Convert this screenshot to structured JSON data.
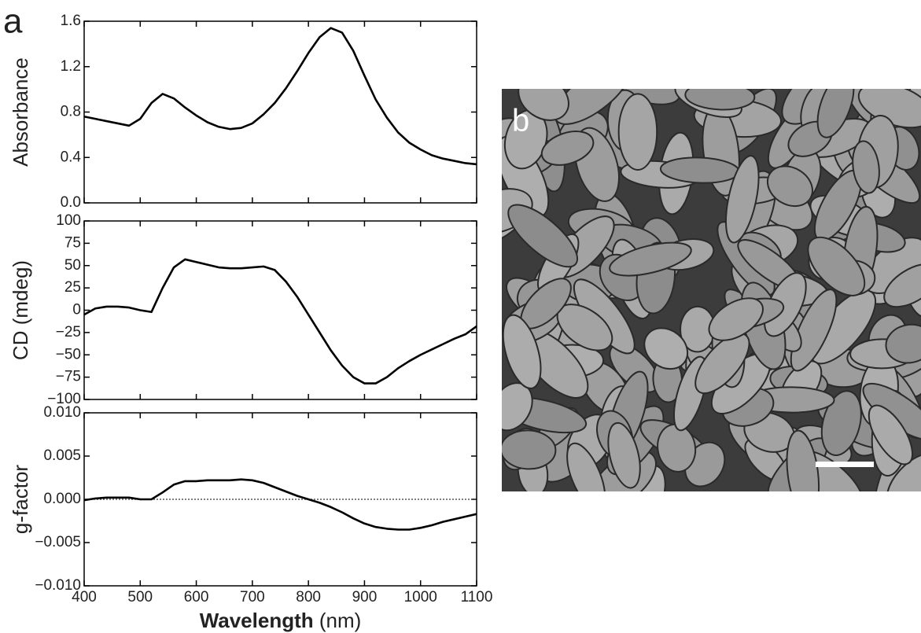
{
  "panel_labels": [
    "a",
    "b"
  ],
  "chart_data": [
    {
      "type": "line",
      "ylabel": "Absorbance",
      "color": "#000000",
      "x": [
        400,
        420,
        440,
        460,
        480,
        500,
        520,
        540,
        560,
        580,
        600,
        620,
        640,
        660,
        680,
        700,
        720,
        740,
        760,
        780,
        800,
        820,
        840,
        860,
        880,
        900,
        920,
        940,
        960,
        980,
        1000,
        1020,
        1040,
        1060,
        1080,
        1100
      ],
      "values": [
        0.76,
        0.74,
        0.72,
        0.7,
        0.68,
        0.74,
        0.88,
        0.96,
        0.92,
        0.84,
        0.77,
        0.71,
        0.67,
        0.65,
        0.66,
        0.7,
        0.78,
        0.88,
        1.01,
        1.16,
        1.32,
        1.46,
        1.54,
        1.5,
        1.34,
        1.12,
        0.91,
        0.75,
        0.62,
        0.53,
        0.47,
        0.42,
        0.39,
        0.37,
        0.35,
        0.34
      ],
      "xlim": [
        400,
        1100
      ],
      "xticks": [
        400,
        500,
        600,
        700,
        800,
        900,
        1000,
        1100
      ],
      "ylim": [
        0,
        1.6
      ],
      "yticks": [
        {
          "value": 0,
          "label": "0.0"
        },
        0.4,
        0.8,
        1.2,
        {
          "value": 1.6,
          "label": "1.6"
        }
      ]
    },
    {
      "type": "line",
      "ylabel": "CD (mdeg)",
      "color": "#000000",
      "x": [
        400,
        420,
        440,
        460,
        480,
        500,
        520,
        540,
        560,
        580,
        600,
        620,
        640,
        660,
        680,
        700,
        720,
        740,
        760,
        780,
        800,
        820,
        840,
        860,
        880,
        900,
        920,
        940,
        960,
        980,
        1000,
        1020,
        1040,
        1060,
        1080,
        1100
      ],
      "values": [
        -5,
        2,
        4,
        4,
        3,
        0,
        -2,
        25,
        48,
        57,
        54,
        51,
        48,
        47,
        47,
        48,
        49,
        45,
        32,
        15,
        -5,
        -25,
        -45,
        -62,
        -75,
        -82,
        -82,
        -75,
        -65,
        -57,
        -50,
        -44,
        -38,
        -32,
        -27,
        -18
      ],
      "xlim": [
        400,
        1100
      ],
      "xticks": [
        400,
        500,
        600,
        700,
        800,
        900,
        1000,
        1100
      ],
      "ylim": [
        -100,
        100
      ],
      "yticks": [
        {
          "value": -100,
          "label": "−100"
        },
        {
          "value": -75,
          "label": "−75"
        },
        {
          "value": -50,
          "label": "−50"
        },
        {
          "value": -25,
          "label": "−25"
        },
        0,
        25,
        50,
        75,
        100
      ]
    },
    {
      "type": "line",
      "ylabel": "g-factor",
      "xlabel": {
        "text": "Wavelength",
        "unit": "(nm)"
      },
      "color": "#000000",
      "hline": 0,
      "x": [
        400,
        420,
        440,
        460,
        480,
        500,
        520,
        540,
        560,
        580,
        600,
        620,
        640,
        660,
        680,
        700,
        720,
        740,
        760,
        780,
        800,
        820,
        840,
        860,
        880,
        900,
        920,
        940,
        960,
        980,
        1000,
        1020,
        1040,
        1060,
        1080,
        1100
      ],
      "values": [
        -0.0001,
        0.0001,
        0.0002,
        0.0002,
        0.0002,
        0,
        0,
        0.0008,
        0.0017,
        0.0021,
        0.0021,
        0.0022,
        0.0022,
        0.0022,
        0.0023,
        0.0022,
        0.0019,
        0.0014,
        0.0009,
        0.0004,
        0,
        -0.0004,
        -0.0009,
        -0.0015,
        -0.0022,
        -0.0028,
        -0.0032,
        -0.0034,
        -0.0035,
        -0.0035,
        -0.0033,
        -0.003,
        -0.0026,
        -0.0023,
        -0.002,
        -0.0017
      ],
      "xlim": [
        400,
        1100
      ],
      "xticks": [
        400,
        500,
        600,
        700,
        800,
        900,
        1000,
        1100
      ],
      "ylim": [
        -0.01,
        0.01
      ],
      "yticks": [
        {
          "value": -0.01,
          "label": "−0.010"
        },
        {
          "value": -0.005,
          "label": "−0.005"
        },
        {
          "value": 0,
          "label": "0.000"
        },
        {
          "value": 0.005,
          "label": "0.005"
        },
        {
          "value": 0.01,
          "label": "0.010"
        }
      ]
    }
  ]
}
